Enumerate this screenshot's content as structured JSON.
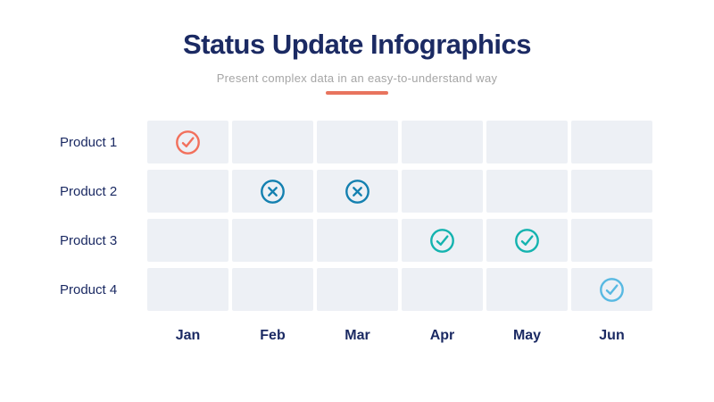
{
  "header": {
    "title": "Status Update Infographics",
    "subtitle": "Present complex data in an easy-to-understand way"
  },
  "colors": {
    "title_navy": "#1B2A63",
    "subtitle_gray": "#A5A5A5",
    "accent_underline": "#E8745E",
    "cell_background": "#EDF0F5",
    "check_orange": "#F2705C",
    "cross_blue": "#1480B0",
    "check_teal": "#14B3AF",
    "check_lightblue": "#58B9E2"
  },
  "months": [
    "Jan",
    "Feb",
    "Mar",
    "Apr",
    "May",
    "Jun"
  ],
  "grid": {
    "rows": [
      {
        "label": "Product 1",
        "cells": [
          {
            "icon": "check-circle-icon",
            "color": "#F2705C"
          },
          null,
          null,
          null,
          null,
          null
        ]
      },
      {
        "label": "Product 2",
        "cells": [
          null,
          {
            "icon": "x-circle-icon",
            "color": "#1480B0"
          },
          {
            "icon": "x-circle-icon",
            "color": "#1480B0"
          },
          null,
          null,
          null
        ]
      },
      {
        "label": "Product 3",
        "cells": [
          null,
          null,
          null,
          {
            "icon": "check-circle-icon",
            "color": "#14B3AF"
          },
          {
            "icon": "check-circle-icon",
            "color": "#14B3AF"
          },
          null
        ]
      },
      {
        "label": "Product 4",
        "cells": [
          null,
          null,
          null,
          null,
          null,
          {
            "icon": "check-circle-icon",
            "color": "#58B9E2"
          }
        ]
      }
    ]
  },
  "chart_data": {
    "type": "table",
    "title": "Status Update Infographics",
    "subtitle": "Present complex data in an easy-to-understand way",
    "columns": [
      "Jan",
      "Feb",
      "Mar",
      "Apr",
      "May",
      "Jun"
    ],
    "rows": [
      "Product 1",
      "Product 2",
      "Product 3",
      "Product 4"
    ],
    "cells": [
      [
        "check",
        "",
        "",
        "",
        "",
        ""
      ],
      [
        "",
        "cross",
        "cross",
        "",
        "",
        ""
      ],
      [
        "",
        "",
        "",
        "check",
        "check",
        ""
      ],
      [
        "",
        "",
        "",
        "",
        "",
        "check"
      ]
    ],
    "cell_colors": [
      [
        "#F2705C",
        "",
        "",
        "",
        "",
        ""
      ],
      [
        "",
        "#1480B0",
        "#1480B0",
        "",
        "",
        ""
      ],
      [
        "",
        "",
        "",
        "#14B3AF",
        "#14B3AF",
        ""
      ],
      [
        "",
        "",
        "",
        "",
        "",
        "#58B9E2"
      ]
    ],
    "legend_position": "none",
    "grid": true
  }
}
